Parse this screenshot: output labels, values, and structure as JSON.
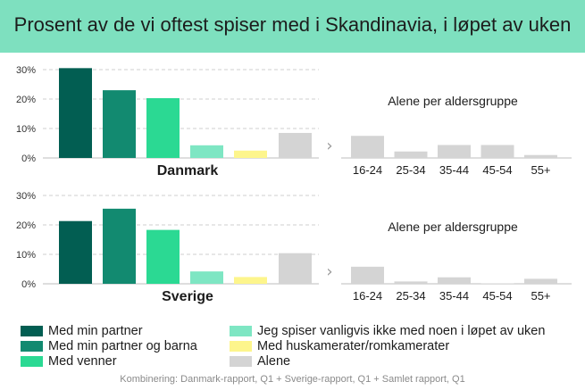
{
  "colors": {
    "header_bg": "#7ee0bf",
    "series": [
      "#025e52",
      "#128a70",
      "#2bd993",
      "#7ee6c3",
      "#fdf58c",
      "#d4d4d4"
    ],
    "age_bars": "#d4d4d4",
    "gridline": "#cfcfcf"
  },
  "chart_title": "Prosent av de vi oftest spiser med i Skandinavia, i løpet av uken",
  "footer_note": "Kombinering: Danmark-rapport, Q1 + Sverige-rapport, Q1 + Samlet rapport, Q1",
  "chevron_glyph": "›",
  "legend": [
    {
      "label": "Med min partner",
      "color": "#025e52"
    },
    {
      "label": "Med min partner og barna",
      "color": "#128a70"
    },
    {
      "label": "Med venner",
      "color": "#2bd993"
    },
    {
      "label": "Jeg spiser vanligvis ikke med noen i løpet av uken",
      "color": "#7ee6c3"
    },
    {
      "label": "Med huskamerater/romkamerater",
      "color": "#fdf58c"
    },
    {
      "label": "Alene",
      "color": "#d4d4d4"
    }
  ],
  "chart_data": [
    {
      "type": "bar",
      "title": "Danmark",
      "series": [
        {
          "name": "Med min partner",
          "values": [
            30.5
          ]
        },
        {
          "name": "Med min partner og barna",
          "values": [
            23
          ]
        },
        {
          "name": "Med venner",
          "values": [
            20.3
          ]
        },
        {
          "name": "Jeg spiser vanligvis ikke med noen i løpet av uken",
          "values": [
            4.3
          ]
        },
        {
          "name": "Med huskamerater/romkamerater",
          "values": [
            2.5
          ]
        },
        {
          "name": "Alene",
          "values": [
            8.5
          ]
        }
      ],
      "yticks": [
        "30%",
        "20%",
        "10%",
        "0%"
      ],
      "ylim": [
        0,
        30
      ],
      "grid": true
    },
    {
      "type": "bar",
      "title": "Alene per aldersgruppe",
      "categories": [
        "16-24",
        "25-34",
        "35-44",
        "45-54",
        "55+"
      ],
      "values": [
        7.5,
        2.2,
        4.4,
        4.4,
        1
      ],
      "ylim": [
        0,
        30
      ]
    },
    {
      "type": "bar",
      "title": "Sverige",
      "series": [
        {
          "name": "Med min partner",
          "values": [
            21.3
          ]
        },
        {
          "name": "Med min partner og barna",
          "values": [
            25.5
          ]
        },
        {
          "name": "Med venner",
          "values": [
            18.3
          ]
        },
        {
          "name": "Jeg spiser vanligvis ikke med noen i løpet av uken",
          "values": [
            4.2
          ]
        },
        {
          "name": "Med huskamerater/romkamerater",
          "values": [
            2.3
          ]
        },
        {
          "name": "Alene",
          "values": [
            10.4
          ]
        }
      ],
      "yticks": [
        "30%",
        "20%",
        "10%",
        "0%"
      ],
      "ylim": [
        0,
        30
      ],
      "grid": true
    },
    {
      "type": "bar",
      "title": "Alene per aldersgruppe",
      "categories": [
        "16-24",
        "25-34",
        "35-44",
        "45-54",
        "55+"
      ],
      "values": [
        5.8,
        0.8,
        2.2,
        0.1,
        1.7
      ],
      "ylim": [
        0,
        30
      ]
    }
  ]
}
